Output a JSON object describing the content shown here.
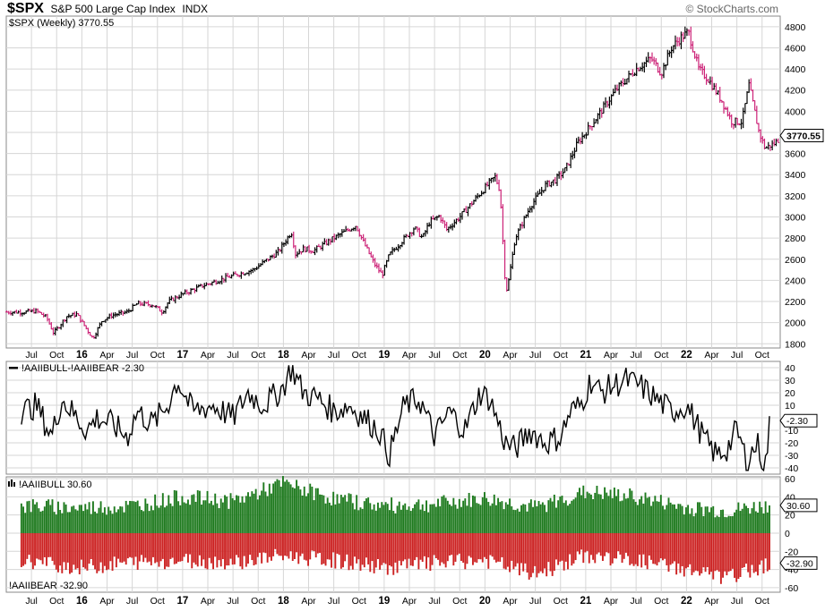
{
  "header": {
    "symbol": "$SPX",
    "name": "S&P 500 Large Cap Index",
    "exchange": "INDX",
    "source": "© StockCharts.com"
  },
  "colors": {
    "up_bar": "#000000",
    "down_bar": "#cc2277",
    "bull": "#1e7a1e",
    "bear": "#cc2222",
    "grid": "#d6d6d6",
    "spread_line": "#000000"
  },
  "chart_data": [
    {
      "type": "line",
      "panel": "price",
      "legend": "$SPX (Weekly) 3770.55",
      "last_value_label": "3770.55",
      "ylim": [
        1760,
        4900
      ],
      "y_ticks": [
        1800,
        2000,
        2200,
        2400,
        2600,
        2800,
        3000,
        3200,
        3400,
        3600,
        3800,
        4000,
        4200,
        4400,
        4600,
        4800
      ],
      "x_tick_labels": [
        "Jul",
        "Oct",
        "16",
        "Apr",
        "Jul",
        "Oct",
        "17",
        "Apr",
        "Jul",
        "Oct",
        "18",
        "Apr",
        "Jul",
        "Oct",
        "19",
        "Apr",
        "Jul",
        "Oct",
        "20",
        "Apr",
        "Jul",
        "Oct",
        "21",
        "Apr",
        "Jul",
        "Oct",
        "22",
        "Apr",
        "Jul",
        "Oct"
      ],
      "x": [
        2015.42,
        2015.55,
        2015.65,
        2015.72,
        2015.85,
        2015.95,
        2016.04,
        2016.11,
        2016.2,
        2016.3,
        2016.45,
        2016.55,
        2016.7,
        2016.8,
        2016.86,
        2017.0,
        2017.2,
        2017.45,
        2017.7,
        2017.95,
        2018.08,
        2018.12,
        2018.2,
        2018.3,
        2018.5,
        2018.72,
        2018.8,
        2018.9,
        2018.98,
        2019.05,
        2019.3,
        2019.38,
        2019.45,
        2019.55,
        2019.62,
        2019.75,
        2019.95,
        2020.1,
        2020.15,
        2020.2,
        2020.22,
        2020.3,
        2020.45,
        2020.6,
        2020.7,
        2020.8,
        2020.92,
        2021.1,
        2021.3,
        2021.5,
        2021.65,
        2021.75,
        2021.85,
        2021.95,
        2022.02,
        2022.12,
        2022.22,
        2022.35,
        2022.45,
        2022.55,
        2022.62,
        2022.72,
        2022.78,
        2022.88,
        2022.95
      ],
      "y": [
        2100,
        2110,
        2050,
        1900,
        2060,
        2080,
        1950,
        1850,
        2020,
        2070,
        2100,
        2180,
        2170,
        2100,
        2200,
        2270,
        2350,
        2430,
        2500,
        2670,
        2860,
        2650,
        2700,
        2680,
        2800,
        2920,
        2750,
        2560,
        2450,
        2640,
        2900,
        2800,
        2950,
        3010,
        2880,
        3000,
        3220,
        3380,
        3250,
        2400,
        2300,
        2800,
        3100,
        3300,
        3350,
        3450,
        3700,
        3930,
        4200,
        4400,
        4500,
        4360,
        4600,
        4700,
        4750,
        4400,
        4300,
        4100,
        3900,
        3900,
        4250,
        3800,
        3650,
        3700,
        3770
      ]
    },
    {
      "type": "line",
      "panel": "spread",
      "legend": "!AAIIBULL-!AAIIBEAR -2.30",
      "last_value_label": "-2.30",
      "ylim": [
        -45,
        45
      ],
      "y_ticks": [
        40,
        30,
        20,
        10,
        0,
        -10,
        -20,
        -30,
        -40
      ],
      "x": [
        2015.4,
        2015.55,
        2015.7,
        2015.8,
        2015.95,
        2016.05,
        2016.15,
        2016.3,
        2016.45,
        2016.55,
        2016.7,
        2016.85,
        2016.95,
        2017.1,
        2017.3,
        2017.5,
        2017.65,
        2017.8,
        2017.95,
        2018.0,
        2018.08,
        2018.2,
        2018.35,
        2018.5,
        2018.65,
        2018.8,
        2018.95,
        2019.05,
        2019.2,
        2019.35,
        2019.5,
        2019.65,
        2019.8,
        2019.95,
        2020.05,
        2020.2,
        2020.3,
        2020.45,
        2020.6,
        2020.75,
        2020.85,
        2020.95,
        2021.05,
        2021.15,
        2021.25,
        2021.4,
        2021.55,
        2021.7,
        2021.85,
        2022.0,
        2022.1,
        2022.2,
        2022.3,
        2022.4,
        2022.5,
        2022.6,
        2022.7,
        2022.78,
        2022.83
      ],
      "y": [
        5,
        10,
        -15,
        15,
        0,
        -10,
        0,
        -5,
        -15,
        5,
        -5,
        10,
        30,
        5,
        10,
        0,
        20,
        10,
        20,
        25,
        40,
        20,
        15,
        5,
        10,
        0,
        -10,
        -30,
        10,
        15,
        -15,
        5,
        -10,
        20,
        15,
        -20,
        -25,
        -10,
        -20,
        -15,
        5,
        10,
        30,
        20,
        25,
        30,
        25,
        15,
        5,
        10,
        -5,
        -20,
        -30,
        -25,
        -10,
        -35,
        -20,
        -40,
        -2.3
      ]
    },
    {
      "type": "bar",
      "panel": "bull_bear",
      "legend_top": "!AAIIBULL 30.60",
      "legend_bottom": "!AAIIBEAR -32.90",
      "bull_last_label": "30.60",
      "bear_last_label": "-32.90",
      "ylim": [
        -65,
        62
      ],
      "y_ticks": [
        60,
        40,
        20,
        0,
        -20,
        -40,
        -60
      ],
      "series": [
        {
          "name": "!AAIIBULL",
          "x": [
            2015.4,
            2016.0,
            2016.5,
            2017.0,
            2017.5,
            2018.0,
            2018.5,
            2019.0,
            2019.5,
            2020.0,
            2020.5,
            2021.0,
            2021.5,
            2022.0,
            2022.4,
            2022.83
          ],
          "values": [
            30,
            28,
            30,
            40,
            35,
            55,
            38,
            30,
            32,
            38,
            28,
            45,
            40,
            28,
            24,
            30.6
          ]
        },
        {
          "name": "!AAIIBEAR",
          "x": [
            2015.4,
            2016.0,
            2016.5,
            2017.0,
            2017.5,
            2018.0,
            2018.5,
            2019.0,
            2019.5,
            2020.0,
            2020.5,
            2021.0,
            2021.5,
            2022.0,
            2022.4,
            2022.83
          ],
          "values": [
            -30,
            -38,
            -32,
            -30,
            -32,
            -25,
            -30,
            -38,
            -33,
            -30,
            -45,
            -25,
            -30,
            -40,
            -50,
            -32.9
          ]
        }
      ]
    }
  ]
}
